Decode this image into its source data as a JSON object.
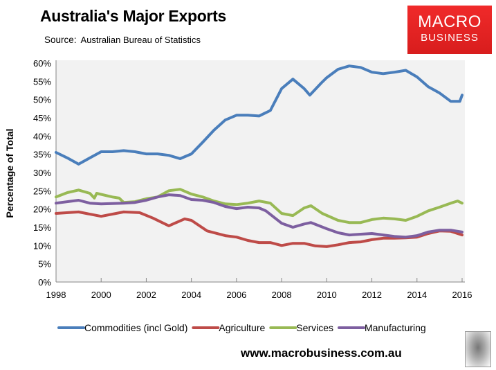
{
  "header": {
    "title": "Australia's Major Exports",
    "source_label": "Source:",
    "source": "Australian Bureau of Statistics"
  },
  "logo": {
    "line1": "MACRO",
    "line2": "BUSINESS",
    "color": "#e62222"
  },
  "footer": {
    "url": "www.macrobusiness.com.au"
  },
  "chart_data": {
    "type": "line",
    "title": "Australia's Major Exports",
    "ylabel": "Percentage of Total",
    "xlabel": "",
    "xlim": [
      1998,
      2016
    ],
    "ylim": [
      0,
      60
    ],
    "x_ticks": [
      "1998",
      "2000",
      "2002",
      "2004",
      "2006",
      "2008",
      "2010",
      "2012",
      "2014",
      "2016"
    ],
    "y_ticks": [
      "0%",
      "5%",
      "10%",
      "15%",
      "20%",
      "25%",
      "30%",
      "35%",
      "40%",
      "45%",
      "50%",
      "55%",
      "60%"
    ],
    "grid": false,
    "legend": "bottom",
    "series": [
      {
        "name": "Commodities (incl Gold)",
        "color": "#4a7ebb",
        "points": [
          [
            1998,
            35.5
          ],
          [
            1998.5,
            34
          ],
          [
            1999,
            32.3
          ],
          [
            1999.5,
            34
          ],
          [
            2000,
            35.7
          ],
          [
            2000.5,
            35.7
          ],
          [
            2001,
            36
          ],
          [
            2001.5,
            35.7
          ],
          [
            2002,
            35.1
          ],
          [
            2002.5,
            35.1
          ],
          [
            2003,
            34.7
          ],
          [
            2003.5,
            33.8
          ],
          [
            2004,
            35.1
          ],
          [
            2004.5,
            38.3
          ],
          [
            2005,
            41.6
          ],
          [
            2005.5,
            44.4
          ],
          [
            2006,
            45.7
          ],
          [
            2006.5,
            45.7
          ],
          [
            2007,
            45.5
          ],
          [
            2007.5,
            47
          ],
          [
            2008,
            53
          ],
          [
            2008.5,
            55.6
          ],
          [
            2009,
            53
          ],
          [
            2009.25,
            51.2
          ],
          [
            2009.75,
            54.5
          ],
          [
            2010,
            56
          ],
          [
            2010.5,
            58.3
          ],
          [
            2011,
            59.2
          ],
          [
            2011.5,
            58.8
          ],
          [
            2012,
            57.5
          ],
          [
            2012.5,
            57.1
          ],
          [
            2013,
            57.5
          ],
          [
            2013.5,
            58
          ],
          [
            2014,
            56.2
          ],
          [
            2014.5,
            53.5
          ],
          [
            2015,
            51.8
          ],
          [
            2015.5,
            49.5
          ],
          [
            2015.9,
            49.5
          ],
          [
            2016,
            51.2
          ]
        ]
      },
      {
        "name": "Agriculture",
        "color": "#be4b48",
        "points": [
          [
            1998,
            18.8
          ],
          [
            1999,
            19.2
          ],
          [
            2000,
            18
          ],
          [
            2001,
            19.2
          ],
          [
            2001.7,
            19
          ],
          [
            2002.3,
            17.5
          ],
          [
            2003,
            15.4
          ],
          [
            2003.7,
            17.3
          ],
          [
            2004,
            16.9
          ],
          [
            2004.7,
            14
          ],
          [
            2005.5,
            12.7
          ],
          [
            2006,
            12.3
          ],
          [
            2006.5,
            11.4
          ],
          [
            2007,
            10.8
          ],
          [
            2007.5,
            10.8
          ],
          [
            2008,
            10
          ],
          [
            2008.5,
            10.6
          ],
          [
            2009,
            10.6
          ],
          [
            2009.5,
            9.9
          ],
          [
            2010,
            9.7
          ],
          [
            2010.5,
            10.2
          ],
          [
            2011,
            10.8
          ],
          [
            2011.5,
            11
          ],
          [
            2012,
            11.6
          ],
          [
            2012.5,
            12
          ],
          [
            2013,
            12
          ],
          [
            2013.5,
            12.1
          ],
          [
            2014,
            12.3
          ],
          [
            2014.5,
            13.3
          ],
          [
            2015,
            14
          ],
          [
            2015.5,
            13.9
          ],
          [
            2016,
            12.9
          ]
        ]
      },
      {
        "name": "Services",
        "color": "#98b954",
        "points": [
          [
            1998,
            23.3
          ],
          [
            1998.5,
            24.5
          ],
          [
            1999,
            25.2
          ],
          [
            1999.5,
            24.3
          ],
          [
            1999.7,
            23
          ],
          [
            1999.8,
            24.3
          ],
          [
            2000.5,
            23.3
          ],
          [
            2000.8,
            23
          ],
          [
            2001,
            21.8
          ],
          [
            2001.5,
            22
          ],
          [
            2002,
            22.8
          ],
          [
            2002.5,
            23.3
          ],
          [
            2003,
            25
          ],
          [
            2003.5,
            25.4
          ],
          [
            2004,
            24.1
          ],
          [
            2004.5,
            23.3
          ],
          [
            2005,
            22.2
          ],
          [
            2005.5,
            21.4
          ],
          [
            2006,
            21.2
          ],
          [
            2006.5,
            21.6
          ],
          [
            2007,
            22.2
          ],
          [
            2007.5,
            21.6
          ],
          [
            2008,
            18.8
          ],
          [
            2008.5,
            18.2
          ],
          [
            2009,
            20.3
          ],
          [
            2009.3,
            20.9
          ],
          [
            2009.8,
            18.8
          ],
          [
            2010.5,
            16.9
          ],
          [
            2011,
            16.3
          ],
          [
            2011.5,
            16.3
          ],
          [
            2012,
            17.1
          ],
          [
            2012.5,
            17.5
          ],
          [
            2013,
            17.3
          ],
          [
            2013.5,
            16.9
          ],
          [
            2014,
            18
          ],
          [
            2014.5,
            19.5
          ],
          [
            2015,
            20.5
          ],
          [
            2015.5,
            21.6
          ],
          [
            2015.8,
            22.2
          ],
          [
            2016,
            21.6
          ]
        ]
      },
      {
        "name": "Manufacturing",
        "color": "#7d5fa0",
        "points": [
          [
            1998,
            21.6
          ],
          [
            1999,
            22.4
          ],
          [
            1999.5,
            21.6
          ],
          [
            2000,
            21.4
          ],
          [
            2001,
            21.6
          ],
          [
            2001.5,
            21.8
          ],
          [
            2002,
            22.4
          ],
          [
            2002.5,
            23.3
          ],
          [
            2003,
            23.9
          ],
          [
            2003.5,
            23.7
          ],
          [
            2004,
            22.6
          ],
          [
            2004.5,
            22.4
          ],
          [
            2005,
            21.8
          ],
          [
            2005.5,
            20.7
          ],
          [
            2006,
            20.1
          ],
          [
            2006.5,
            20.5
          ],
          [
            2007,
            20.3
          ],
          [
            2007.3,
            19.5
          ],
          [
            2008,
            16.1
          ],
          [
            2008.5,
            15
          ],
          [
            2009,
            15.9
          ],
          [
            2009.3,
            16.3
          ],
          [
            2010,
            14.6
          ],
          [
            2010.5,
            13.5
          ],
          [
            2011,
            12.9
          ],
          [
            2011.5,
            13.1
          ],
          [
            2012,
            13.3
          ],
          [
            2012.5,
            12.9
          ],
          [
            2013,
            12.5
          ],
          [
            2013.5,
            12.3
          ],
          [
            2014,
            12.7
          ],
          [
            2014.5,
            13.7
          ],
          [
            2015,
            14.2
          ],
          [
            2015.5,
            14.2
          ],
          [
            2016,
            13.7
          ]
        ]
      }
    ]
  }
}
